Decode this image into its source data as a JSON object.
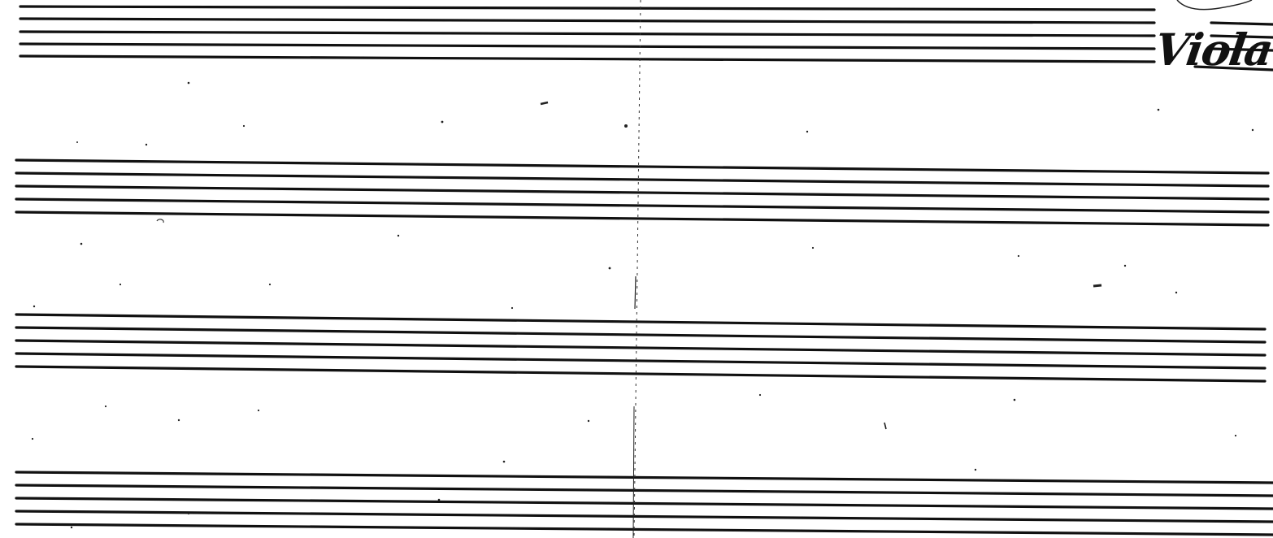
{
  "page": {
    "part_label": "Viola",
    "ink_color": "#111111",
    "paper_color": "#ffffff"
  },
  "staves": [
    {
      "name": "staff-1",
      "lines": 5
    },
    {
      "name": "staff-2",
      "lines": 5
    },
    {
      "name": "staff-3",
      "lines": 5
    },
    {
      "name": "staff-4",
      "lines": 5
    }
  ]
}
